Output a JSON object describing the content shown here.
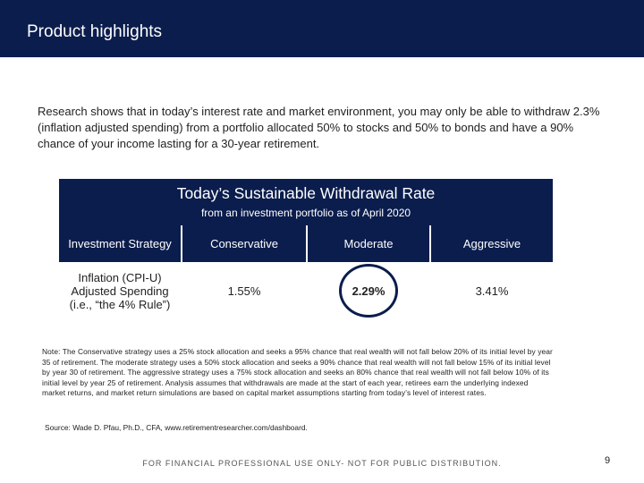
{
  "header": {
    "title": "Product highlights"
  },
  "intro": "Research shows that in today’s interest rate and market environment, you may only be able to withdraw 2.3% (inflation adjusted spending) from a portfolio allocated 50% to stocks and 50% to bonds and have a 90% chance of your income lasting for a 30-year retirement.",
  "table": {
    "title": "Today’s Sustainable Withdrawal Rate",
    "subtitle": "from an investment portfolio as of April 2020",
    "columns": [
      "Investment Strategy",
      "Conservative",
      "Moderate",
      "Aggressive"
    ],
    "rows": [
      [
        "Inflation (CPI-U) Adjusted Spending (i.e., “the 4% Rule”)",
        "1.55%",
        "2.29%",
        "3.41%"
      ]
    ]
  },
  "note": "Note: The Conservative strategy uses a 25% stock allocation and seeks a 95% chance that real wealth will not fall below 20% of its initial level by year 35 of retirement. The moderate strategy uses a 50% stock allocation and seeks a 90% chance that real wealth will not fall below 15% of its initial level by year 30 of retirement. The aggressive strategy uses a 75% stock allocation and seeks an 80% chance that real wealth will not fall below 10% of its initial level by year 25 of retirement. Analysis assumes that withdrawals are made at the start of each year, retirees earn the underlying indexed market returns, and market return simulations are based on capital market assumptions starting from today’s level of interest rates.",
  "source": "Source: Wade D. Pfau, Ph.D., CFA, www.retirementresearcher.com/dashboard.",
  "footer": "FOR FINANCIAL PROFESSIONAL USE ONLY- NOT FOR PUBLIC DISTRIBUTION.",
  "page_number": "9"
}
